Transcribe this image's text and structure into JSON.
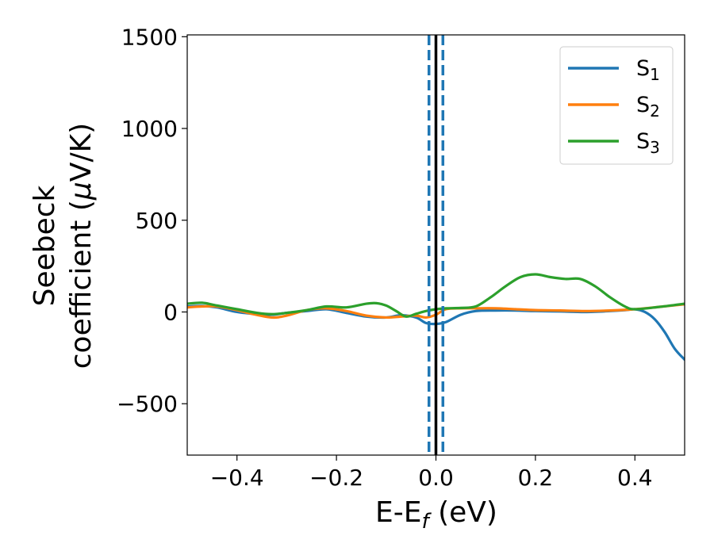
{
  "chart_data": {
    "type": "line",
    "xlabel": {
      "main": "E-E",
      "sub": "f",
      "unit": " (eV)"
    },
    "ylabel": {
      "line1": "Seebeck",
      "line2_pre": "coefficient  (",
      "mu": "μ",
      "line2_post": "V/K)"
    },
    "xlim": [
      -0.5,
      0.5
    ],
    "ylim": [
      -780,
      1510
    ],
    "xticks": [
      -0.4,
      -0.2,
      0.0,
      0.2,
      0.4
    ],
    "xtick_labels": [
      "−0.4",
      "−0.2",
      "0.0",
      "0.2",
      "0.4"
    ],
    "yticks": [
      -500,
      0,
      500,
      1000,
      1500
    ],
    "ytick_labels": [
      "−500",
      "0",
      "500",
      "1000",
      "1500"
    ],
    "grid": false,
    "legend_position": "top-right",
    "vertical_lines": [
      {
        "x": 0.0,
        "color": "#000000",
        "style": "solid"
      },
      {
        "x": -0.014,
        "color": "#1f77b4",
        "style": "dashed"
      },
      {
        "x": 0.014,
        "color": "#1f77b4",
        "style": "dashed"
      }
    ],
    "series": [
      {
        "name": "S",
        "sub": "1",
        "color": "#1f77b4",
        "x": [
          -0.5,
          -0.47,
          -0.44,
          -0.4,
          -0.36,
          -0.33,
          -0.3,
          -0.26,
          -0.22,
          -0.18,
          -0.14,
          -0.1,
          -0.07,
          -0.04,
          -0.02,
          0.0,
          0.02,
          0.05,
          0.08,
          0.12,
          0.16,
          0.2,
          0.25,
          0.3,
          0.35,
          0.38,
          0.4,
          0.42,
          0.44,
          0.46,
          0.48,
          0.5
        ],
        "y": [
          30,
          33,
          25,
          0,
          -12,
          -15,
          -5,
          5,
          15,
          -5,
          -25,
          -30,
          -18,
          -30,
          -60,
          -65,
          -55,
          -15,
          5,
          8,
          8,
          5,
          3,
          0,
          5,
          10,
          15,
          0,
          -40,
          -110,
          -200,
          -260
        ]
      },
      {
        "name": "S",
        "sub": "2",
        "color": "#ff7f0e",
        "x": [
          -0.5,
          -0.47,
          -0.44,
          -0.4,
          -0.37,
          -0.33,
          -0.3,
          -0.26,
          -0.22,
          -0.18,
          -0.14,
          -0.1,
          -0.07,
          -0.04,
          -0.02,
          0.0,
          0.02,
          0.05,
          0.08,
          0.12,
          0.16,
          0.2,
          0.25,
          0.3,
          0.35,
          0.4,
          0.45,
          0.5
        ],
        "y": [
          25,
          30,
          30,
          10,
          -10,
          -30,
          -20,
          10,
          20,
          5,
          -20,
          -30,
          -25,
          -20,
          -30,
          -15,
          15,
          20,
          20,
          20,
          15,
          10,
          8,
          5,
          8,
          15,
          28,
          42
        ]
      },
      {
        "name": "S",
        "sub": "3",
        "color": "#2ca02c",
        "x": [
          -0.5,
          -0.47,
          -0.44,
          -0.4,
          -0.36,
          -0.33,
          -0.3,
          -0.26,
          -0.22,
          -0.18,
          -0.14,
          -0.12,
          -0.1,
          -0.08,
          -0.06,
          -0.04,
          -0.02,
          0.0,
          0.02,
          0.05,
          0.08,
          0.11,
          0.14,
          0.17,
          0.2,
          0.23,
          0.26,
          0.29,
          0.32,
          0.35,
          0.38,
          0.4,
          0.45,
          0.5
        ],
        "y": [
          45,
          50,
          35,
          15,
          -5,
          -12,
          -5,
          10,
          30,
          25,
          45,
          48,
          35,
          5,
          -25,
          -10,
          5,
          15,
          20,
          22,
          30,
          80,
          140,
          190,
          205,
          190,
          180,
          180,
          140,
          80,
          30,
          15,
          28,
          45
        ]
      }
    ]
  }
}
